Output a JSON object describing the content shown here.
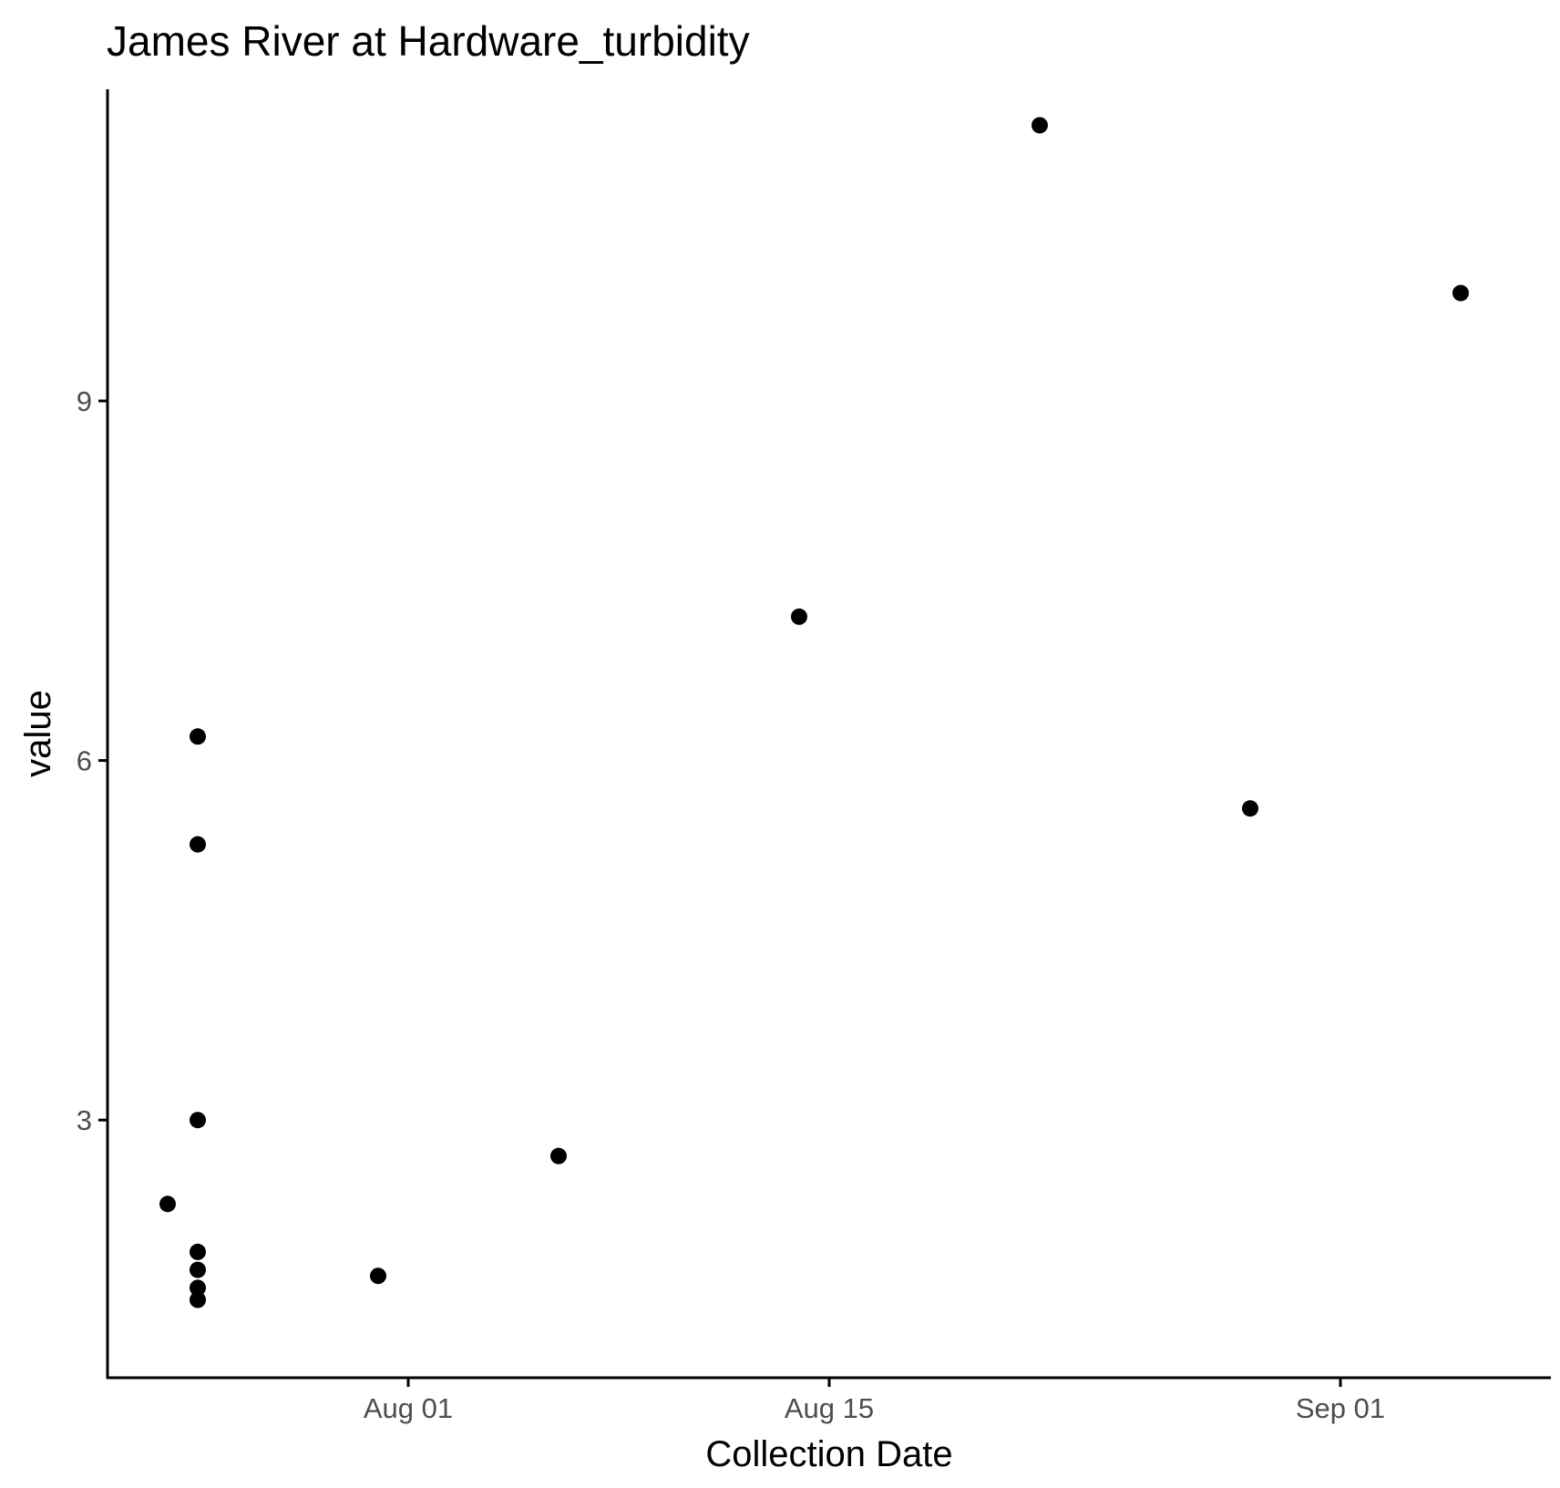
{
  "chart_data": {
    "type": "scatter",
    "title": "James River at Hardware_turbidity",
    "xlabel": "Collection Date",
    "ylabel": "value",
    "x_axis": {
      "type": "date",
      "ticks": [
        "2023-08-01",
        "2023-08-15",
        "2023-09-01"
      ],
      "tick_labels": [
        "Aug 01",
        "Aug 15",
        "Sep 01"
      ],
      "range": [
        "2023-07-22",
        "2023-09-08"
      ]
    },
    "y_axis": {
      "ticks": [
        3,
        6,
        9
      ],
      "tick_labels": [
        "3",
        "6",
        "9"
      ],
      "range": [
        0.85,
        11.6
      ]
    },
    "grid": false,
    "legend": "none",
    "colors": {
      "point": "#000000",
      "axis": "#000000",
      "tick_label": "#4d4d4d"
    },
    "points": [
      {
        "x": "2023-07-24",
        "y": 2.3
      },
      {
        "x": "2023-07-25",
        "y": 6.2
      },
      {
        "x": "2023-07-25",
        "y": 5.3
      },
      {
        "x": "2023-07-25",
        "y": 3.0
      },
      {
        "x": "2023-07-25",
        "y": 1.9
      },
      {
        "x": "2023-07-25",
        "y": 1.75
      },
      {
        "x": "2023-07-25",
        "y": 1.6
      },
      {
        "x": "2023-07-25",
        "y": 1.5
      },
      {
        "x": "2023-07-31",
        "y": 1.7
      },
      {
        "x": "2023-08-06",
        "y": 2.7
      },
      {
        "x": "2023-08-14",
        "y": 7.2
      },
      {
        "x": "2023-08-22",
        "y": 11.3
      },
      {
        "x": "2023-08-29",
        "y": 5.6
      },
      {
        "x": "2023-09-05",
        "y": 9.9
      }
    ]
  }
}
